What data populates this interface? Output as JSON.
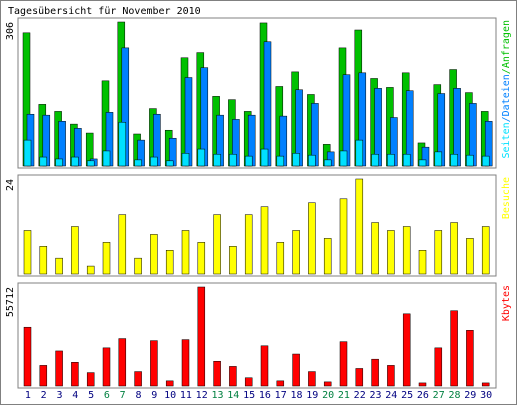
{
  "chart_data": [
    {
      "type": "bar",
      "title": "Tagesübersicht für November 2010",
      "categories": [
        "1",
        "2",
        "3",
        "4",
        "5",
        "6",
        "7",
        "8",
        "9",
        "10",
        "11",
        "12",
        "13",
        "14",
        "15",
        "16",
        "17",
        "18",
        "19",
        "20",
        "21",
        "22",
        "23",
        "24",
        "25",
        "26",
        "27",
        "28",
        "29",
        "30"
      ],
      "category_colors": [
        "#000080",
        "#000080",
        "#000080",
        "#000080",
        "#000080",
        "#008040",
        "#008040",
        "#000080",
        "#000080",
        "#000080",
        "#000080",
        "#000080",
        "#008040",
        "#008040",
        "#000080",
        "#000080",
        "#000080",
        "#000080",
        "#000080",
        "#008040",
        "#008040",
        "#000080",
        "#000080",
        "#000080",
        "#000080",
        "#000080",
        "#008040",
        "#008040",
        "#000080",
        "#000080"
      ],
      "legend_separator": "/",
      "ylim": [
        0,
        306
      ],
      "yticks": [
        306
      ],
      "series": [
        {
          "name": "Anfragen",
          "color": "#00c000",
          "values": [
            283,
            131,
            116,
            89,
            70,
            181,
            306,
            68,
            122,
            76,
            230,
            241,
            148,
            141,
            116,
            304,
            169,
            200,
            152,
            46,
            251,
            289,
            186,
            167,
            198,
            49,
            173,
            205,
            156,
            116
          ]
        },
        {
          "name": "Dateien",
          "color": "#0080ff",
          "values": [
            110,
            108,
            95,
            80,
            15,
            114,
            251,
            55,
            110,
            59,
            188,
            209,
            108,
            99,
            108,
            264,
            106,
            162,
            133,
            30,
            194,
            198,
            165,
            103,
            160,
            40,
            154,
            165,
            133,
            95
          ]
        },
        {
          "name": "Seiten",
          "color": "#00e0ff",
          "values": [
            55,
            19,
            15,
            19,
            11,
            32,
            93,
            13,
            19,
            11,
            27,
            36,
            25,
            25,
            21,
            36,
            21,
            27,
            23,
            13,
            32,
            55,
            25,
            25,
            25,
            13,
            30,
            25,
            23,
            21
          ]
        }
      ]
    },
    {
      "type": "bar",
      "ylim": [
        0,
        24
      ],
      "yticks": [
        24
      ],
      "series": [
        {
          "name": "Besuche",
          "color": "#ffff00",
          "values": [
            11,
            7,
            4,
            12,
            2,
            8,
            15,
            4,
            10,
            6,
            11,
            8,
            15,
            7,
            15,
            17,
            8,
            11,
            18,
            9,
            19,
            24,
            13,
            11,
            12,
            6,
            11,
            13,
            9,
            12
          ]
        }
      ]
    },
    {
      "type": "bar",
      "ylim": [
        0,
        55712
      ],
      "yticks": [
        55712
      ],
      "series": [
        {
          "name": "Kbytes",
          "color": "#ff0000",
          "values": [
            33080,
            11600,
            19730,
            13350,
            7540,
            21470,
            26690,
            8120,
            25530,
            2900,
            26110,
            55712,
            13930,
            11030,
            4640,
            22630,
            2900,
            17990,
            8120,
            2320,
            24950,
            9870,
            15090,
            11600,
            40620,
            1740,
            21470,
            42360,
            31340,
            1740
          ]
        }
      ]
    }
  ]
}
